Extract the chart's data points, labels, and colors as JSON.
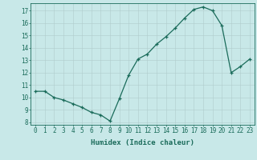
{
  "x": [
    0,
    1,
    2,
    3,
    4,
    5,
    6,
    7,
    8,
    9,
    10,
    11,
    12,
    13,
    14,
    15,
    16,
    17,
    18,
    19,
    20,
    21,
    22,
    23
  ],
  "y": [
    10.5,
    10.5,
    10.0,
    9.8,
    9.5,
    9.2,
    8.8,
    8.6,
    8.1,
    9.9,
    11.8,
    13.1,
    13.5,
    14.3,
    14.9,
    15.6,
    16.4,
    17.1,
    17.3,
    17.0,
    15.8,
    12.0,
    12.5,
    13.1
  ],
  "line_color": "#1a6b5a",
  "marker": "+",
  "bg_color": "#c8e8e8",
  "grid_color_major": "#b0cccc",
  "grid_color_minor": "#c0d8d8",
  "xlabel": "Humidex (Indice chaleur)",
  "ylim": [
    7.8,
    17.6
  ],
  "xlim": [
    -0.5,
    23.5
  ],
  "yticks": [
    8,
    9,
    10,
    11,
    12,
    13,
    14,
    15,
    16,
    17
  ],
  "xticks": [
    0,
    1,
    2,
    3,
    4,
    5,
    6,
    7,
    8,
    9,
    10,
    11,
    12,
    13,
    14,
    15,
    16,
    17,
    18,
    19,
    20,
    21,
    22,
    23
  ],
  "axis_color": "#1a6b5a",
  "tick_color": "#1a6b5a",
  "label_fontsize": 6.5,
  "tick_fontsize": 5.5
}
